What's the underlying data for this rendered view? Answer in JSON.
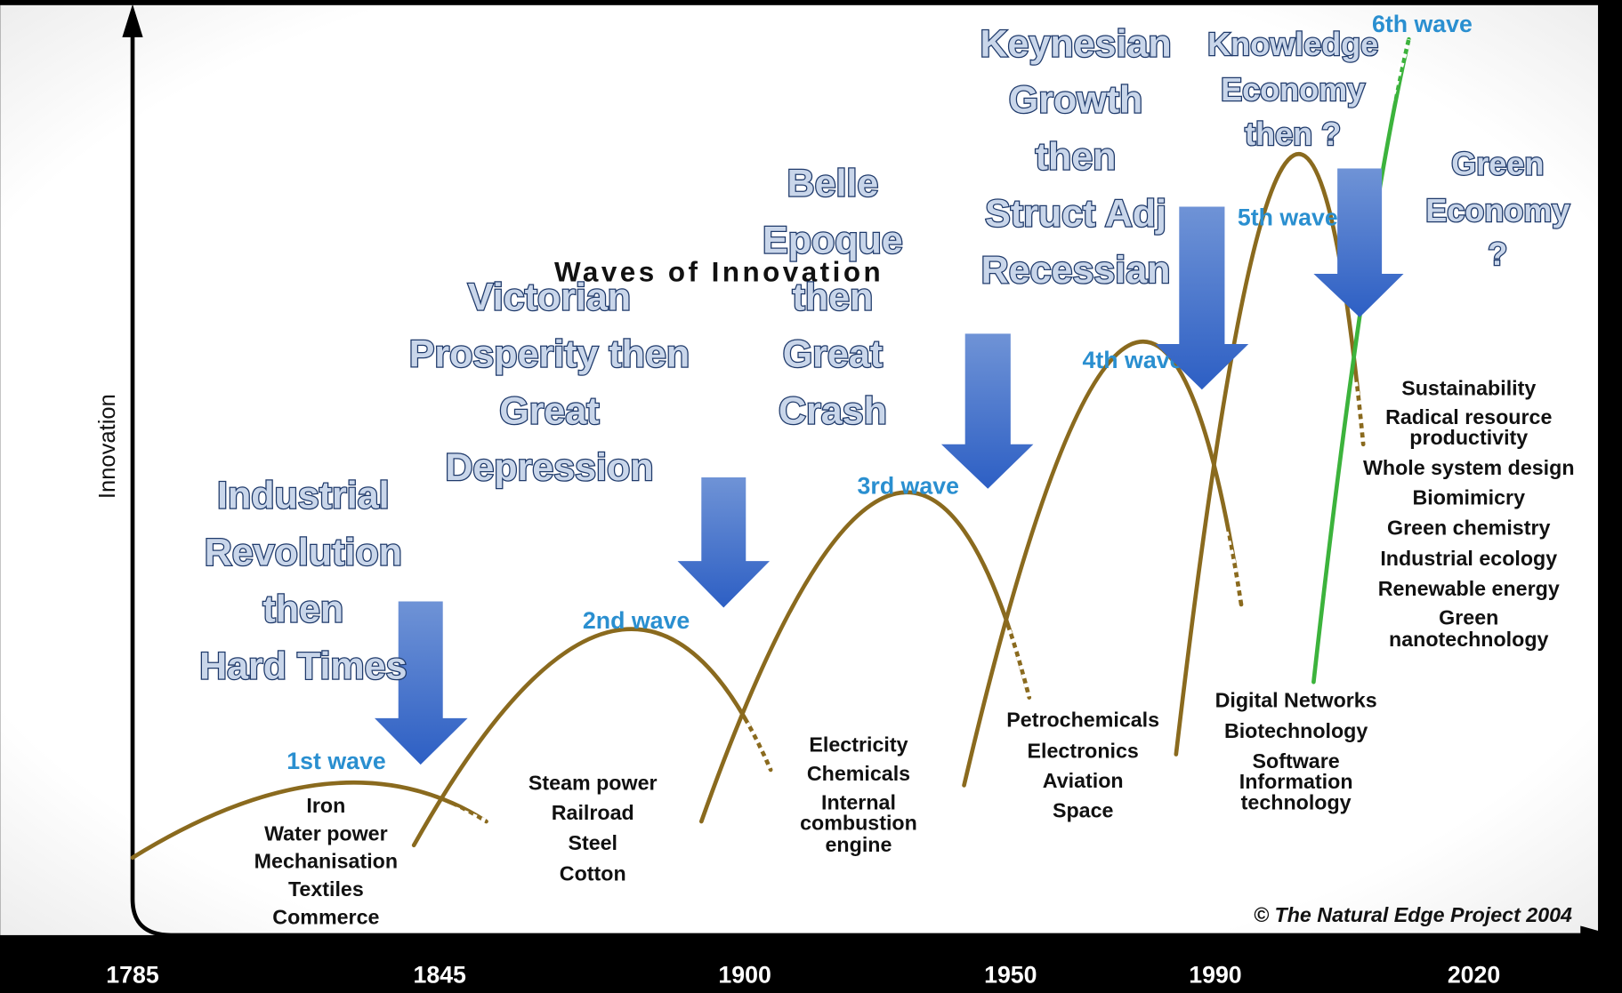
{
  "title": "Waves of Innovation",
  "y_axis_label": "Innovation",
  "x_axis_labels": [
    "1785",
    "1845",
    "1900",
    "1950",
    "1990",
    "2020"
  ],
  "waves": [
    {
      "label": "1st wave",
      "technologies": [
        "Iron",
        "Water power",
        "Mechanisation",
        "Textiles",
        "Commerce"
      ]
    },
    {
      "label": "2nd wave",
      "technologies": [
        "Steam power",
        "Railroad",
        "Steel",
        "Cotton"
      ]
    },
    {
      "label": "3rd wave",
      "technologies": [
        "Electricity",
        "Chemicals",
        "Internal",
        "combustion",
        "engine"
      ]
    },
    {
      "label": "4th wave",
      "technologies": [
        "Petrochemicals",
        "Electronics",
        "Aviation",
        "Space"
      ]
    },
    {
      "label": "5th wave",
      "technologies": [
        "Digital Networks",
        "Biotechnology",
        "Software",
        "Information",
        "technology"
      ]
    },
    {
      "label": "6th wave",
      "technologies": [
        "Sustainability",
        "Radical resource",
        "productivity",
        "Whole system design",
        "Biomimicry",
        "Green chemistry",
        "Industrial ecology",
        "Renewable energy",
        "Green",
        "nanotechnology"
      ]
    }
  ],
  "captions": [
    {
      "lines": [
        "Industrial",
        "Revolution",
        "then",
        "Hard Times"
      ]
    },
    {
      "lines": [
        "Victorian",
        "Prosperity then",
        "Great",
        "Depression"
      ]
    },
    {
      "lines": [
        "Belle",
        "Epoque",
        "then",
        "Great",
        "Crash"
      ]
    },
    {
      "lines": [
        "Keynesian",
        "Growth",
        "then",
        "Struct Adj",
        "Recessian"
      ]
    },
    {
      "lines": [
        "Knowledge",
        "Economy",
        "then ?"
      ]
    },
    {
      "lines": [
        "Green",
        "Economy",
        "?"
      ]
    }
  ],
  "copyright": "© The Natural Edge Project 2004"
}
